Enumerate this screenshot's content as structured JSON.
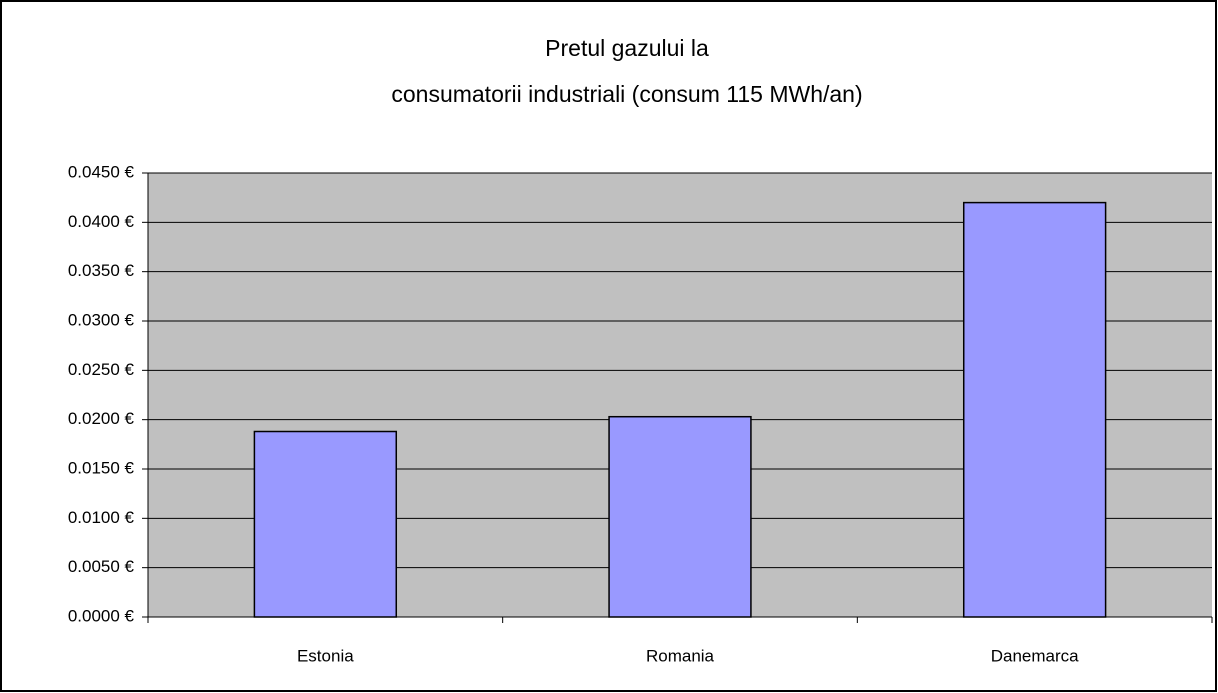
{
  "chart_data": {
    "type": "bar",
    "title": [
      "Pretul gazului la",
      "consumatorii industriali (consum 115 MWh/an)"
    ],
    "categories": [
      "Estonia",
      "Romania",
      "Danemarca"
    ],
    "values": [
      0.0188,
      0.0203,
      0.042
    ],
    "color": "#9999ff",
    "ylim": [
      0,
      0.045
    ],
    "yticks": [
      {
        "value": 0,
        "label": "0.0000 €"
      },
      {
        "value": 0.005,
        "label": "0.0050 €"
      },
      {
        "value": 0.01,
        "label": "0.0100 €"
      },
      {
        "value": 0.015,
        "label": "0.0150 €"
      },
      {
        "value": 0.02,
        "label": "0.0200 €"
      },
      {
        "value": 0.025,
        "label": "0.0250 €"
      },
      {
        "value": 0.03,
        "label": "0.0300 €"
      },
      {
        "value": 0.035,
        "label": "0.0350 €"
      },
      {
        "value": 0.04,
        "label": "0.0400 €"
      },
      {
        "value": 0.045,
        "label": "0.0450 €"
      }
    ],
    "grid": true
  }
}
